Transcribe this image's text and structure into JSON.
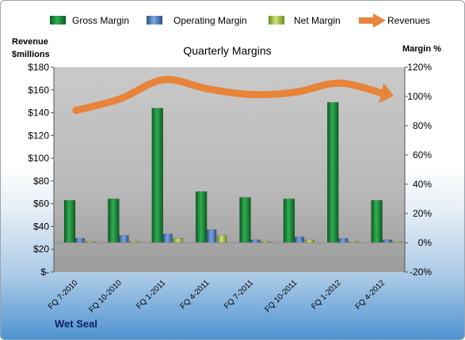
{
  "company": "Wet Seal",
  "chart_data": {
    "type": "bar",
    "title": "Quarterly Margins",
    "ylabel_left": [
      "Revenue",
      "$millions"
    ],
    "ylabel_right": "Margin %",
    "categories": [
      "FQ 7-2010",
      "FQ 10-2010",
      "FQ 1-2011",
      "FQ 4-2011",
      "FQ 7-2011",
      "FQ 10-2011",
      "FQ 1-2012",
      "FQ 4-2012"
    ],
    "left_axis": {
      "min": 0,
      "max": 180,
      "step": 20,
      "tick_labels": [
        "$-",
        "$20",
        "$40",
        "$60",
        "$80",
        "$100",
        "$120",
        "$140",
        "$160",
        "$180"
      ]
    },
    "right_axis": {
      "min": -20,
      "max": 120,
      "step": 20,
      "tick_labels": [
        "-20%",
        "0%",
        "20%",
        "40%",
        "60%",
        "80%",
        "100%",
        "120%"
      ]
    },
    "series": [
      {
        "name": "Gross Margin",
        "axis": "right",
        "type": "bar",
        "color": "#1e8a3c",
        "values": [
          29,
          30,
          92,
          35,
          31,
          30,
          96,
          29
        ]
      },
      {
        "name": "Operating Margin",
        "axis": "right",
        "type": "bar",
        "color": "#4f7fbf",
        "values": [
          3,
          5,
          6,
          9,
          2,
          4,
          3,
          2
        ]
      },
      {
        "name": "Net Margin",
        "axis": "right",
        "type": "bar",
        "color": "#a6c34a",
        "values": [
          1,
          1,
          3,
          5,
          1,
          2,
          0,
          0
        ]
      },
      {
        "name": "Revenues",
        "axis": "left",
        "type": "line",
        "color": "#e8833a",
        "values": [
          142,
          152,
          169,
          161,
          156,
          158,
          166,
          157
        ]
      }
    ],
    "legend_position": "top",
    "grid": false
  }
}
